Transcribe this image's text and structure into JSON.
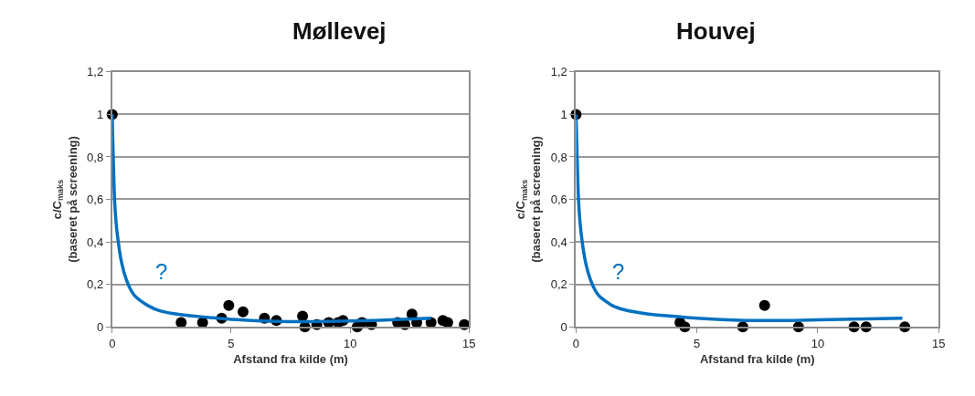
{
  "chart_data": [
    {
      "type": "scatter",
      "title": "Møllevej",
      "xlabel": "Afstand fra kilde (m)",
      "ylabel": "c/C$_{maks}$\n(baseret på screening)",
      "xlim": [
        0,
        15
      ],
      "xticks": [
        0,
        5,
        10,
        15
      ],
      "ylim": [
        0,
        1.2
      ],
      "yticks": [
        {
          "value": 0,
          "label": "0"
        },
        {
          "value": 0.2,
          "label": "0,2"
        },
        {
          "value": 0.4,
          "label": "0,4"
        },
        {
          "value": 0.6,
          "label": "0,6"
        },
        {
          "value": 0.8,
          "label": "0,8"
        },
        {
          "value": 1,
          "label": "1"
        },
        {
          "value": 1.2,
          "label": "1,2"
        }
      ],
      "grid": "y",
      "marker": "circle",
      "annotations": [
        "?"
      ],
      "series": [
        {
          "color": "#000000",
          "x": [
            0,
            2.9,
            3.8,
            4.6,
            4.9,
            5.5,
            6.4,
            6.9,
            8.0,
            8.1,
            8.6,
            9.1,
            9.5,
            9.7,
            10.3,
            10.5,
            10.9,
            12.0,
            12.3,
            12.6,
            12.8,
            13.4,
            13.9,
            14.1,
            14.8
          ],
          "values": [
            1,
            0.02,
            0.02,
            0.04,
            0.1,
            0.07,
            0.04,
            0.03,
            0.05,
            0.0,
            0.01,
            0.02,
            0.02,
            0.03,
            0.0,
            0.02,
            0.01,
            0.02,
            0.01,
            0.06,
            0.02,
            0.02,
            0.03,
            0.02,
            0.01
          ]
        },
        {
          "type": "line",
          "color": "#0070c0",
          "marker": "none",
          "x": [
            0,
            0.1,
            0.2,
            0.4,
            0.6,
            0.8,
            1,
            1.5,
            2,
            3,
            4,
            5,
            7,
            9,
            11,
            13.4
          ],
          "values": [
            1,
            0.6,
            0.45,
            0.3,
            0.22,
            0.17,
            0.14,
            0.1,
            0.075,
            0.055,
            0.045,
            0.035,
            0.025,
            0.025,
            0.03,
            0.04
          ]
        }
      ]
    },
    {
      "type": "scatter",
      "title": "Houvej",
      "xlabel": "Afstand fra kilde (m)",
      "ylabel": "c/C$_{maks}$\n(baseret på screening)",
      "xlim": [
        0,
        15
      ],
      "xticks": [
        0,
        5,
        10,
        15
      ],
      "ylim": [
        0,
        1.2
      ],
      "yticks": [
        {
          "value": 0,
          "label": "0"
        },
        {
          "value": 0.2,
          "label": "0,2"
        },
        {
          "value": 0.4,
          "label": "0,4"
        },
        {
          "value": 0.6,
          "label": "0,6"
        },
        {
          "value": 0.8,
          "label": "0,8"
        },
        {
          "value": 1,
          "label": "1"
        },
        {
          "value": 1.2,
          "label": "1,2"
        }
      ],
      "grid": "y",
      "marker": "circle",
      "annotations": [
        "?"
      ],
      "series": [
        {
          "color": "#000000",
          "x": [
            0,
            4.3,
            4.5,
            6.9,
            7.8,
            9.2,
            11.5,
            12.0,
            13.6
          ],
          "values": [
            1,
            0.02,
            0.0,
            0.0,
            0.1,
            0.0,
            0.0,
            0.0,
            0.0
          ]
        },
        {
          "type": "line",
          "color": "#0070c0",
          "marker": "none",
          "x": [
            0,
            0.1,
            0.2,
            0.4,
            0.6,
            0.8,
            1,
            1.5,
            2,
            3,
            4,
            5,
            7,
            9,
            11,
            13.5
          ],
          "values": [
            1,
            0.6,
            0.45,
            0.3,
            0.22,
            0.17,
            0.14,
            0.1,
            0.08,
            0.06,
            0.05,
            0.04,
            0.03,
            0.03,
            0.035,
            0.04
          ]
        }
      ]
    }
  ]
}
